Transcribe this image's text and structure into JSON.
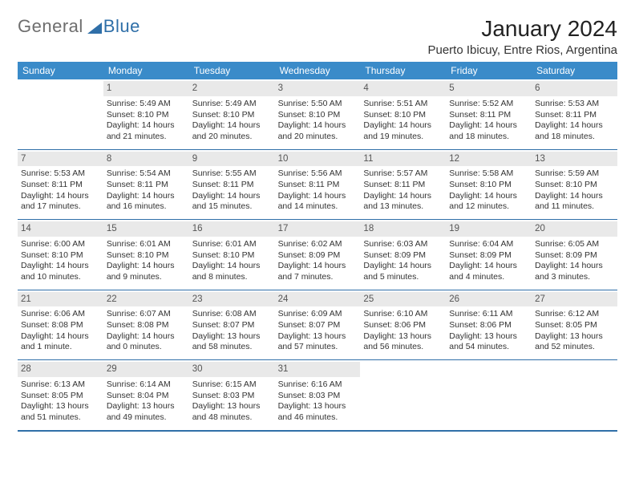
{
  "logo": {
    "grey": "General",
    "blue": "Blue"
  },
  "title": "January 2024",
  "location": "Puerto Ibicuy, Entre Rios, Argentina",
  "columns": [
    "Sunday",
    "Monday",
    "Tuesday",
    "Wednesday",
    "Thursday",
    "Friday",
    "Saturday"
  ],
  "colors": {
    "header_bg": "#3a8bc9",
    "header_text": "#ffffff",
    "rule": "#2f6fa8",
    "daynum_bg": "#e9e9e9",
    "body_text": "#333333",
    "logo_grey": "#6e6e6e",
    "logo_blue": "#2f6fa8",
    "page_bg": "#ffffff"
  },
  "typography": {
    "month_title_size": 28,
    "location_size": 15,
    "header_size": 12,
    "cell_size": 10.5,
    "daynum_size": 11.5,
    "family": "Arial"
  },
  "weeks": [
    [
      null,
      {
        "n": "1",
        "sr": "Sunrise: 5:49 AM",
        "ss": "Sunset: 8:10 PM",
        "d1": "Daylight: 14 hours",
        "d2": "and 21 minutes."
      },
      {
        "n": "2",
        "sr": "Sunrise: 5:49 AM",
        "ss": "Sunset: 8:10 PM",
        "d1": "Daylight: 14 hours",
        "d2": "and 20 minutes."
      },
      {
        "n": "3",
        "sr": "Sunrise: 5:50 AM",
        "ss": "Sunset: 8:10 PM",
        "d1": "Daylight: 14 hours",
        "d2": "and 20 minutes."
      },
      {
        "n": "4",
        "sr": "Sunrise: 5:51 AM",
        "ss": "Sunset: 8:10 PM",
        "d1": "Daylight: 14 hours",
        "d2": "and 19 minutes."
      },
      {
        "n": "5",
        "sr": "Sunrise: 5:52 AM",
        "ss": "Sunset: 8:11 PM",
        "d1": "Daylight: 14 hours",
        "d2": "and 18 minutes."
      },
      {
        "n": "6",
        "sr": "Sunrise: 5:53 AM",
        "ss": "Sunset: 8:11 PM",
        "d1": "Daylight: 14 hours",
        "d2": "and 18 minutes."
      }
    ],
    [
      {
        "n": "7",
        "sr": "Sunrise: 5:53 AM",
        "ss": "Sunset: 8:11 PM",
        "d1": "Daylight: 14 hours",
        "d2": "and 17 minutes."
      },
      {
        "n": "8",
        "sr": "Sunrise: 5:54 AM",
        "ss": "Sunset: 8:11 PM",
        "d1": "Daylight: 14 hours",
        "d2": "and 16 minutes."
      },
      {
        "n": "9",
        "sr": "Sunrise: 5:55 AM",
        "ss": "Sunset: 8:11 PM",
        "d1": "Daylight: 14 hours",
        "d2": "and 15 minutes."
      },
      {
        "n": "10",
        "sr": "Sunrise: 5:56 AM",
        "ss": "Sunset: 8:11 PM",
        "d1": "Daylight: 14 hours",
        "d2": "and 14 minutes."
      },
      {
        "n": "11",
        "sr": "Sunrise: 5:57 AM",
        "ss": "Sunset: 8:11 PM",
        "d1": "Daylight: 14 hours",
        "d2": "and 13 minutes."
      },
      {
        "n": "12",
        "sr": "Sunrise: 5:58 AM",
        "ss": "Sunset: 8:10 PM",
        "d1": "Daylight: 14 hours",
        "d2": "and 12 minutes."
      },
      {
        "n": "13",
        "sr": "Sunrise: 5:59 AM",
        "ss": "Sunset: 8:10 PM",
        "d1": "Daylight: 14 hours",
        "d2": "and 11 minutes."
      }
    ],
    [
      {
        "n": "14",
        "sr": "Sunrise: 6:00 AM",
        "ss": "Sunset: 8:10 PM",
        "d1": "Daylight: 14 hours",
        "d2": "and 10 minutes."
      },
      {
        "n": "15",
        "sr": "Sunrise: 6:01 AM",
        "ss": "Sunset: 8:10 PM",
        "d1": "Daylight: 14 hours",
        "d2": "and 9 minutes."
      },
      {
        "n": "16",
        "sr": "Sunrise: 6:01 AM",
        "ss": "Sunset: 8:10 PM",
        "d1": "Daylight: 14 hours",
        "d2": "and 8 minutes."
      },
      {
        "n": "17",
        "sr": "Sunrise: 6:02 AM",
        "ss": "Sunset: 8:09 PM",
        "d1": "Daylight: 14 hours",
        "d2": "and 7 minutes."
      },
      {
        "n": "18",
        "sr": "Sunrise: 6:03 AM",
        "ss": "Sunset: 8:09 PM",
        "d1": "Daylight: 14 hours",
        "d2": "and 5 minutes."
      },
      {
        "n": "19",
        "sr": "Sunrise: 6:04 AM",
        "ss": "Sunset: 8:09 PM",
        "d1": "Daylight: 14 hours",
        "d2": "and 4 minutes."
      },
      {
        "n": "20",
        "sr": "Sunrise: 6:05 AM",
        "ss": "Sunset: 8:09 PM",
        "d1": "Daylight: 14 hours",
        "d2": "and 3 minutes."
      }
    ],
    [
      {
        "n": "21",
        "sr": "Sunrise: 6:06 AM",
        "ss": "Sunset: 8:08 PM",
        "d1": "Daylight: 14 hours",
        "d2": "and 1 minute."
      },
      {
        "n": "22",
        "sr": "Sunrise: 6:07 AM",
        "ss": "Sunset: 8:08 PM",
        "d1": "Daylight: 14 hours",
        "d2": "and 0 minutes."
      },
      {
        "n": "23",
        "sr": "Sunrise: 6:08 AM",
        "ss": "Sunset: 8:07 PM",
        "d1": "Daylight: 13 hours",
        "d2": "and 58 minutes."
      },
      {
        "n": "24",
        "sr": "Sunrise: 6:09 AM",
        "ss": "Sunset: 8:07 PM",
        "d1": "Daylight: 13 hours",
        "d2": "and 57 minutes."
      },
      {
        "n": "25",
        "sr": "Sunrise: 6:10 AM",
        "ss": "Sunset: 8:06 PM",
        "d1": "Daylight: 13 hours",
        "d2": "and 56 minutes."
      },
      {
        "n": "26",
        "sr": "Sunrise: 6:11 AM",
        "ss": "Sunset: 8:06 PM",
        "d1": "Daylight: 13 hours",
        "d2": "and 54 minutes."
      },
      {
        "n": "27",
        "sr": "Sunrise: 6:12 AM",
        "ss": "Sunset: 8:05 PM",
        "d1": "Daylight: 13 hours",
        "d2": "and 52 minutes."
      }
    ],
    [
      {
        "n": "28",
        "sr": "Sunrise: 6:13 AM",
        "ss": "Sunset: 8:05 PM",
        "d1": "Daylight: 13 hours",
        "d2": "and 51 minutes."
      },
      {
        "n": "29",
        "sr": "Sunrise: 6:14 AM",
        "ss": "Sunset: 8:04 PM",
        "d1": "Daylight: 13 hours",
        "d2": "and 49 minutes."
      },
      {
        "n": "30",
        "sr": "Sunrise: 6:15 AM",
        "ss": "Sunset: 8:03 PM",
        "d1": "Daylight: 13 hours",
        "d2": "and 48 minutes."
      },
      {
        "n": "31",
        "sr": "Sunrise: 6:16 AM",
        "ss": "Sunset: 8:03 PM",
        "d1": "Daylight: 13 hours",
        "d2": "and 46 minutes."
      },
      null,
      null,
      null
    ]
  ]
}
